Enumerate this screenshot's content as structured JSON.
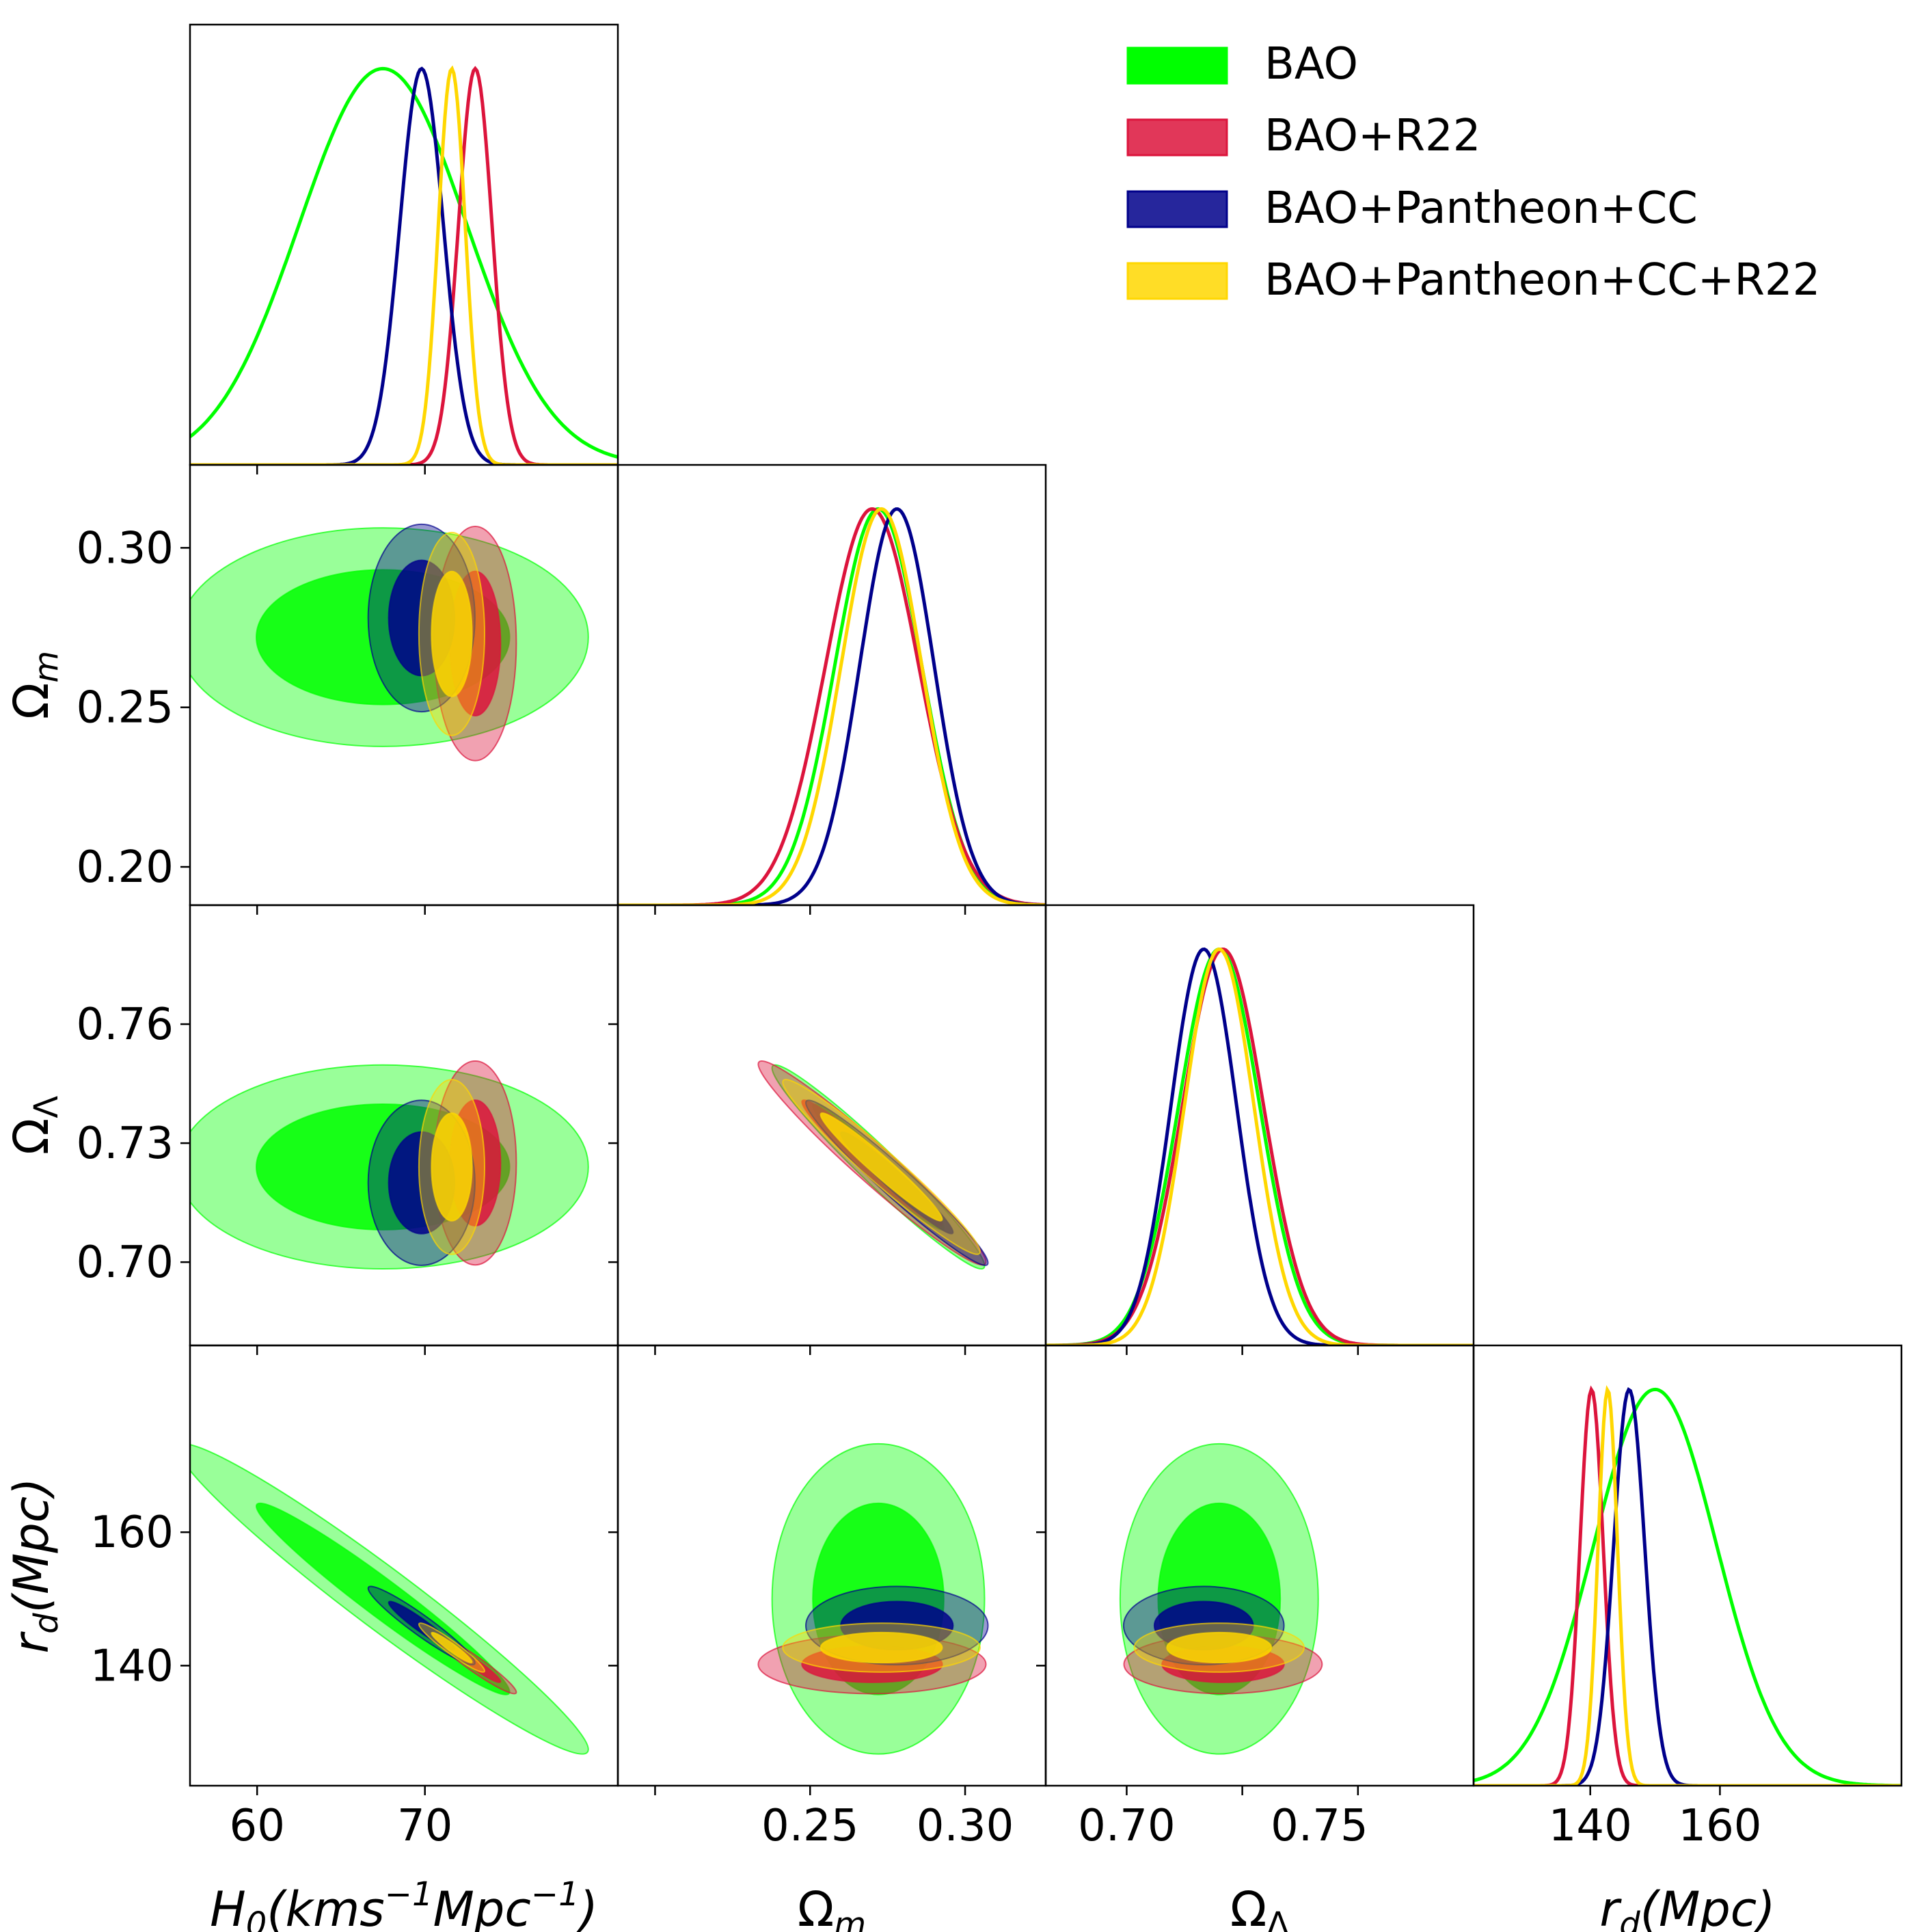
{
  "chart_data": {
    "type": "triangle-corner-plot",
    "title": "",
    "parameters": [
      {
        "key": "H0",
        "label": "H0(kms−1Mpc−1)",
        "range": [
          56,
          81.5
        ],
        "ticks": [
          60,
          70
        ],
        "tick_labels": [
          "60",
          "70"
        ]
      },
      {
        "key": "Om",
        "label": "Ωm",
        "range": [
          0.188,
          0.326
        ],
        "ticks": [
          0.2,
          0.25,
          0.3
        ],
        "tick_labels": [
          "0.20",
          "0.25",
          "0.30"
        ]
      },
      {
        "key": "OL",
        "label": "ΩΛ",
        "range": [
          0.679,
          0.79
        ],
        "ticks": [
          0.7,
          0.73,
          0.76
        ],
        "tick_labels": [
          "0.70",
          "0.73",
          "0.76"
        ]
      },
      {
        "key": "rd",
        "label": "rd(Mpc)",
        "range": [
          122,
          188
        ],
        "ticks": [
          140,
          160
        ],
        "tick_labels": [
          "140",
          "160"
        ]
      }
    ],
    "x_axis_labels": {
      "H0": {
        "main": "H",
        "sub": "0",
        "rest": "(kms",
        "sup1": "−1",
        "rest2": "Mpc",
        "sup2": "−1",
        "close": ")"
      },
      "Om": {
        "main": "Ω",
        "sub": "m"
      },
      "OL": {
        "main": "Ω",
        "sub": "Λ"
      },
      "rd": {
        "main": "r",
        "sub": "d",
        "rest": "(Mpc)"
      }
    },
    "x_tick_labels": {
      "H0": [
        "60",
        "70"
      ],
      "Om": [
        "0.25",
        "0.30"
      ],
      "OL": [
        "0.70",
        "0.75"
      ],
      "rd": [
        "140",
        "160"
      ]
    },
    "legend": {
      "position": "top-right",
      "entries": [
        "BAO",
        "BAO+R22",
        "BAO+Pantheon+CC",
        "BAO+Pantheon+CC+R22"
      ]
    },
    "series": [
      {
        "name": "BAO",
        "color": "#00ff00",
        "mean": {
          "H0": 67.5,
          "Om": 0.272,
          "OL": 0.724,
          "rd": 150.0
        },
        "sigma": {
          "H0": 5.0,
          "Om": 0.014,
          "OL": 0.0105,
          "rd": 9.5
        },
        "rho": {
          "H0_Om": 0.0,
          "H0_OL": 0.0,
          "Om_OL": -0.97,
          "H0_rd": -0.97,
          "Om_rd": 0.0,
          "OL_rd": 0.0
        }
      },
      {
        "name": "BAO+R22",
        "color": "#dc143c",
        "mean": {
          "H0": 73.0,
          "Om": 0.27,
          "OL": 0.725,
          "rd": 140.2
        },
        "sigma": {
          "H0": 1.0,
          "Om": 0.015,
          "OL": 0.0105,
          "rd": 1.8
        },
        "rho": {
          "H0_Om": 0.0,
          "H0_OL": 0.0,
          "Om_OL": -0.97,
          "H0_rd": -0.95,
          "Om_rd": 0.0,
          "OL_rd": 0.0
        }
      },
      {
        "name": "BAO+Pantheon+CC",
        "color": "#00008b",
        "mean": {
          "H0": 69.8,
          "Om": 0.278,
          "OL": 0.72,
          "rd": 146.0
        },
        "sigma": {
          "H0": 1.3,
          "Om": 0.012,
          "OL": 0.0085,
          "rd": 2.4
        },
        "rho": {
          "H0_Om": 0.0,
          "H0_OL": 0.0,
          "Om_OL": -0.97,
          "H0_rd": -0.95,
          "Om_rd": 0.0,
          "OL_rd": 0.0
        }
      },
      {
        "name": "BAO+Pantheon+CC+R22",
        "color": "#ffd700",
        "mean": {
          "H0": 71.6,
          "Om": 0.273,
          "OL": 0.724,
          "rd": 142.7
        },
        "sigma": {
          "H0": 0.8,
          "Om": 0.013,
          "OL": 0.009,
          "rd": 1.5
        },
        "rho": {
          "H0_Om": 0.0,
          "H0_OL": 0.0,
          "Om_OL": -0.97,
          "H0_rd": -0.95,
          "Om_rd": 0.0,
          "OL_rd": 0.0
        }
      }
    ],
    "contour_levels": [
      "68%",
      "95%"
    ]
  }
}
